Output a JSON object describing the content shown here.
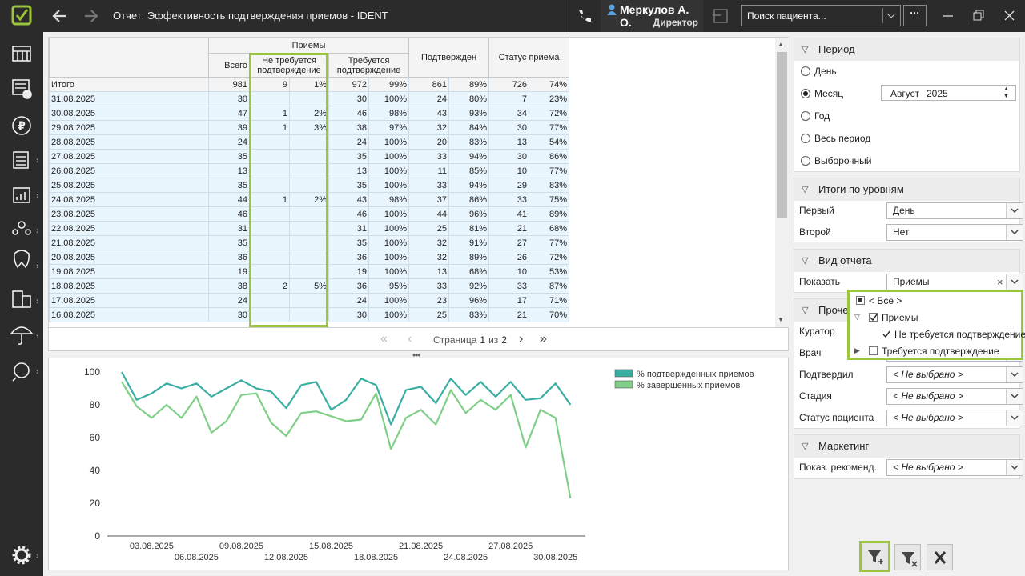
{
  "header": {
    "title": "Отчет: Эффективность подтверждения приемов - IDENT",
    "user_name": "Меркулов А. О.",
    "user_role": "Директор",
    "search_placeholder": "Поиск пациента..."
  },
  "table": {
    "group_header": "Приемы",
    "columns": [
      "Всего",
      "Не требуется подтверждение",
      "Требуется подтверждение",
      "Подтвержден",
      "Статус приема"
    ],
    "rows": [
      [
        "Итого",
        "981",
        "9",
        "1%",
        "972",
        "99%",
        "861",
        "89%",
        "726",
        "74%"
      ],
      [
        "31.08.2025",
        "30",
        null,
        null,
        "30",
        "100%",
        "24",
        "80%",
        "7",
        "23%"
      ],
      [
        "30.08.2025",
        "47",
        "1",
        "2%",
        "46",
        "98%",
        "43",
        "93%",
        "34",
        "72%"
      ],
      [
        "29.08.2025",
        "39",
        "1",
        "3%",
        "38",
        "97%",
        "32",
        "84%",
        "30",
        "77%"
      ],
      [
        "28.08.2025",
        "24",
        null,
        null,
        "24",
        "100%",
        "20",
        "83%",
        "13",
        "54%"
      ],
      [
        "27.08.2025",
        "35",
        null,
        null,
        "35",
        "100%",
        "33",
        "94%",
        "30",
        "86%"
      ],
      [
        "26.08.2025",
        "13",
        null,
        null,
        "13",
        "100%",
        "11",
        "85%",
        "10",
        "77%"
      ],
      [
        "25.08.2025",
        "35",
        null,
        null,
        "35",
        "100%",
        "33",
        "94%",
        "29",
        "83%"
      ],
      [
        "24.08.2025",
        "44",
        "1",
        "2%",
        "43",
        "98%",
        "37",
        "86%",
        "33",
        "75%"
      ],
      [
        "23.08.2025",
        "46",
        null,
        null,
        "46",
        "100%",
        "44",
        "96%",
        "41",
        "89%"
      ],
      [
        "22.08.2025",
        "31",
        null,
        null,
        "31",
        "100%",
        "25",
        "81%",
        "21",
        "68%"
      ],
      [
        "21.08.2025",
        "35",
        null,
        null,
        "35",
        "100%",
        "32",
        "91%",
        "27",
        "77%"
      ],
      [
        "20.08.2025",
        "36",
        null,
        null,
        "36",
        "100%",
        "32",
        "89%",
        "26",
        "72%"
      ],
      [
        "19.08.2025",
        "19",
        null,
        null,
        "19",
        "100%",
        "13",
        "68%",
        "10",
        "53%"
      ],
      [
        "18.08.2025",
        "38",
        "2",
        "5%",
        "36",
        "95%",
        "33",
        "92%",
        "33",
        "87%"
      ],
      [
        "17.08.2025",
        "24",
        null,
        null,
        "24",
        "100%",
        "23",
        "96%",
        "17",
        "71%"
      ],
      [
        "16.08.2025",
        "30",
        null,
        null,
        "30",
        "100%",
        "25",
        "83%",
        "21",
        "70%"
      ]
    ]
  },
  "pager": {
    "label": "Страница",
    "page": "1",
    "of": "из",
    "total": "2"
  },
  "chart_data": {
    "type": "line",
    "categories": [
      null,
      null,
      "03.08.2025",
      null,
      null,
      "06.08.2025",
      null,
      null,
      "09.08.2025",
      null,
      null,
      "12.08.2025",
      null,
      null,
      "15.08.2025",
      null,
      null,
      "18.08.2025",
      null,
      null,
      "21.08.2025",
      null,
      null,
      "24.08.2025",
      null,
      null,
      "27.08.2025",
      null,
      null,
      "30.08.2025",
      null
    ],
    "series": [
      {
        "name": "% подтвержденных приемов",
        "color": "#3aaea3",
        "values": [
          100,
          83,
          87,
          93,
          90,
          93,
          85,
          90,
          95,
          90,
          88,
          78,
          92,
          94,
          77,
          83,
          96,
          92,
          68,
          89,
          91,
          81,
          96,
          86,
          94,
          85,
          94,
          83,
          84,
          93,
          80
        ]
      },
      {
        "name": "% завершенных приемов",
        "color": "#7fcf87",
        "values": [
          94,
          79,
          72,
          80,
          72,
          85,
          63,
          70,
          86,
          87,
          69,
          61,
          75,
          76,
          73,
          70,
          71,
          87,
          53,
          72,
          77,
          68,
          89,
          75,
          83,
          77,
          86,
          54,
          77,
          72,
          23
        ]
      }
    ],
    "ylim": [
      0,
      100
    ],
    "yticks": [
      0,
      20,
      40,
      60,
      80,
      100
    ],
    "grid": false,
    "legend": "top-right"
  },
  "filters": {
    "period": {
      "title": "Период",
      "options": [
        "День",
        "Месяц",
        "Год",
        "Весь период",
        "Выборочный"
      ],
      "selected_index": 1,
      "month": "Август",
      "year": "2025"
    },
    "levels": {
      "title": "Итоги по уровням",
      "fields": [
        {
          "label": "Первый",
          "value": "День"
        },
        {
          "label": "Второй",
          "value": "Нет"
        }
      ]
    },
    "view": {
      "title": "Вид отчета",
      "fields": [
        {
          "label": "Показать",
          "value": "Приемы"
        }
      ],
      "dropdown": [
        {
          "label": "< Все >",
          "state": "partial",
          "level": 0
        },
        {
          "label": "Приемы",
          "state": "checked",
          "level": 0,
          "expanded": true
        },
        {
          "label": "Не требуется подтверждение",
          "state": "checked",
          "level": 1
        },
        {
          "label": "Требуется подтверждение",
          "state": "unchecked",
          "level": 0,
          "expanded": false
        }
      ]
    },
    "other": {
      "title": "Прочее",
      "fields": [
        {
          "label": "Куратор"
        },
        {
          "label": "Врач"
        },
        {
          "label": "Подтвердил",
          "value": "< Не выбрано >"
        },
        {
          "label": "Стадия",
          "value": "< Не выбрано >"
        },
        {
          "label": "Статус пациента",
          "value": "< Не выбрано >"
        }
      ]
    },
    "marketing": {
      "title": "Маркетинг",
      "fields": [
        {
          "label": "Показ. рекоменд.",
          "value": "< Не выбрано >"
        }
      ]
    }
  }
}
